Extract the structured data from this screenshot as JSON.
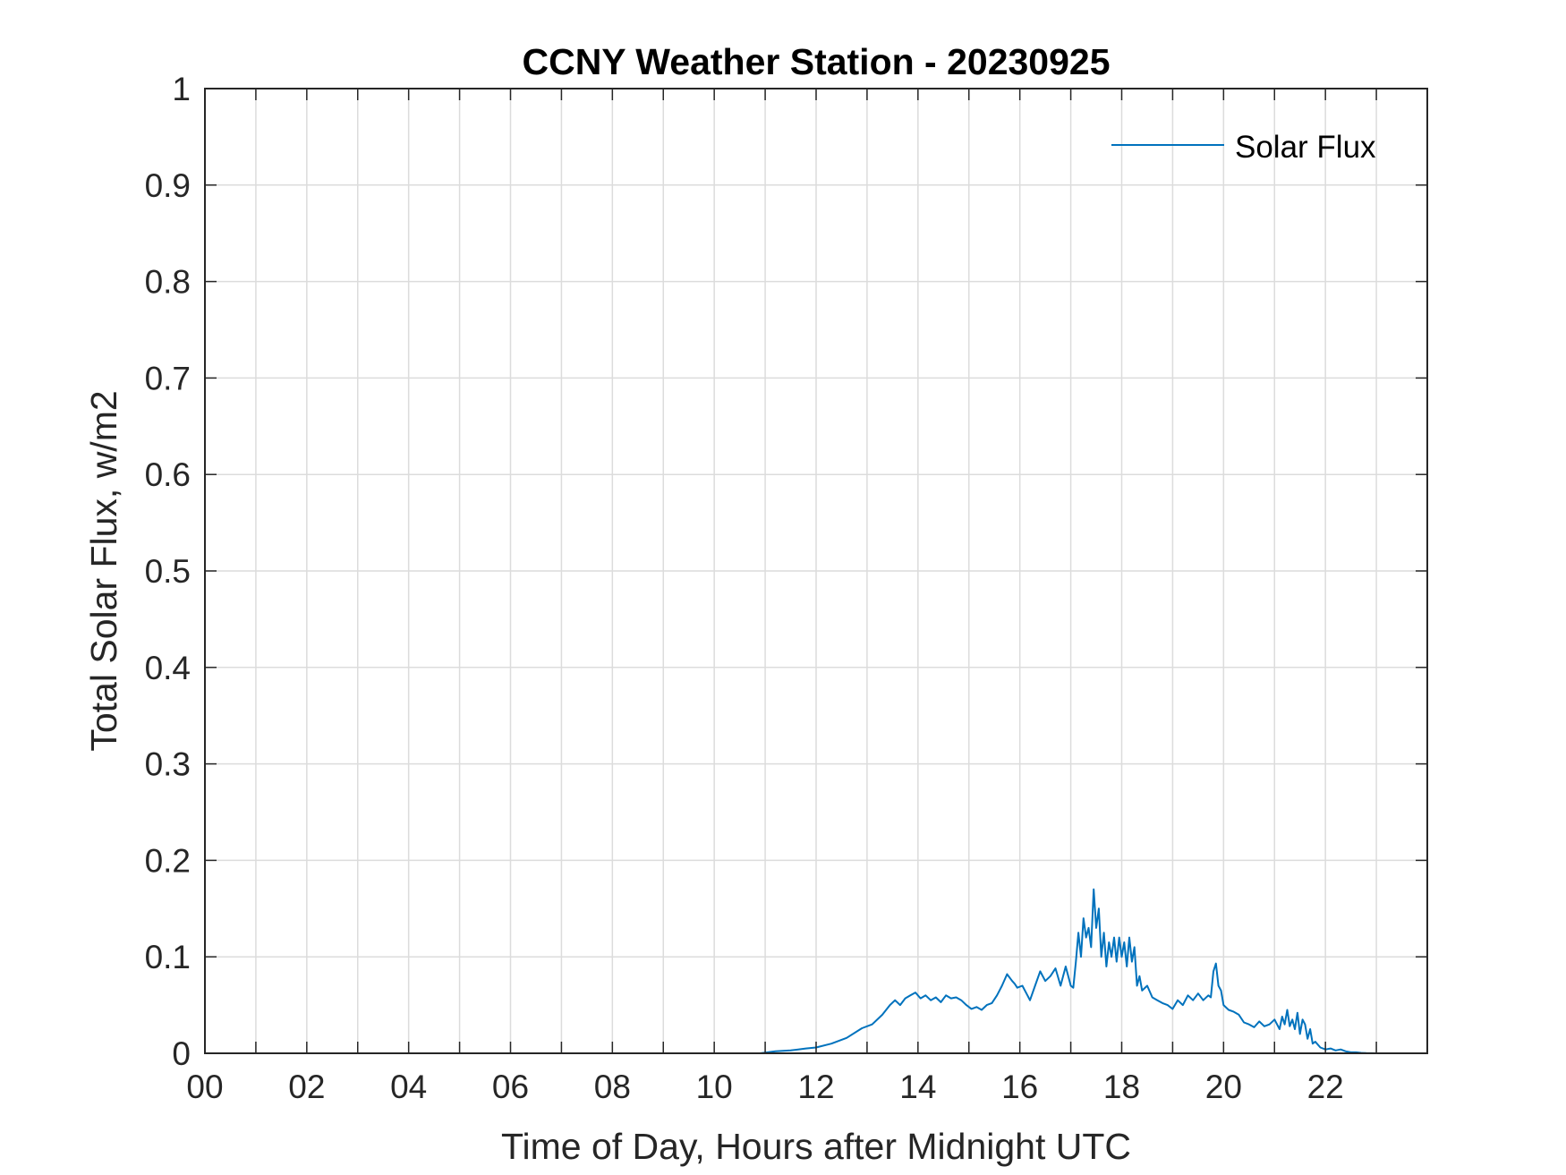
{
  "chart_data": {
    "type": "line",
    "title": "CCNY Weather Station - 20230925",
    "xlabel": "Time of Day, Hours after Midnight UTC",
    "ylabel": "Total Solar Flux, w/m2",
    "xlim": [
      0,
      24
    ],
    "ylim": [
      0,
      1
    ],
    "grid": true,
    "legend_position": "top-right",
    "x_ticks": [
      {
        "value": 0,
        "label": "00"
      },
      {
        "value": 2,
        "label": "02"
      },
      {
        "value": 4,
        "label": "04"
      },
      {
        "value": 6,
        "label": "06"
      },
      {
        "value": 8,
        "label": "08"
      },
      {
        "value": 10,
        "label": "10"
      },
      {
        "value": 12,
        "label": "12"
      },
      {
        "value": 14,
        "label": "14"
      },
      {
        "value": 16,
        "label": "16"
      },
      {
        "value": 18,
        "label": "18"
      },
      {
        "value": 20,
        "label": "20"
      },
      {
        "value": 22,
        "label": "22"
      }
    ],
    "x_minor_grid": [
      1,
      3,
      5,
      7,
      9,
      11,
      13,
      15,
      17,
      19,
      21,
      23
    ],
    "y_ticks": [
      {
        "value": 0,
        "label": "0"
      },
      {
        "value": 0.1,
        "label": "0.1"
      },
      {
        "value": 0.2,
        "label": "0.2"
      },
      {
        "value": 0.3,
        "label": "0.3"
      },
      {
        "value": 0.4,
        "label": "0.4"
      },
      {
        "value": 0.5,
        "label": "0.5"
      },
      {
        "value": 0.6,
        "label": "0.6"
      },
      {
        "value": 0.7,
        "label": "0.7"
      },
      {
        "value": 0.8,
        "label": "0.8"
      },
      {
        "value": 0.9,
        "label": "0.9"
      },
      {
        "value": 1,
        "label": "1"
      }
    ],
    "series": [
      {
        "name": "Solar Flux",
        "color": "#0072BD",
        "x": [
          0,
          10.9,
          11.2,
          11.5,
          11.8,
          12.0,
          12.3,
          12.6,
          12.9,
          13.1,
          13.3,
          13.45,
          13.55,
          13.65,
          13.75,
          13.85,
          13.95,
          14.05,
          14.15,
          14.25,
          14.35,
          14.45,
          14.55,
          14.65,
          14.75,
          14.85,
          14.95,
          15.05,
          15.15,
          15.25,
          15.35,
          15.45,
          15.55,
          15.6,
          15.65,
          15.75,
          15.85,
          15.9,
          15.95,
          16.05,
          16.15,
          16.2,
          16.3,
          16.4,
          16.5,
          16.6,
          16.7,
          16.8,
          16.9,
          17.0,
          17.05,
          17.1,
          17.15,
          17.2,
          17.25,
          17.3,
          17.35,
          17.4,
          17.45,
          17.5,
          17.55,
          17.6,
          17.65,
          17.7,
          17.75,
          17.8,
          17.85,
          17.9,
          17.95,
          18.0,
          18.05,
          18.1,
          18.15,
          18.2,
          18.25,
          18.3,
          18.35,
          18.4,
          18.5,
          18.6,
          18.7,
          18.8,
          18.9,
          19.0,
          19.1,
          19.2,
          19.3,
          19.4,
          19.5,
          19.6,
          19.7,
          19.75,
          19.8,
          19.85,
          19.9,
          19.95,
          20.0,
          20.1,
          20.2,
          20.3,
          20.4,
          20.5,
          20.6,
          20.7,
          20.8,
          20.9,
          21.0,
          21.1,
          21.15,
          21.2,
          21.25,
          21.3,
          21.35,
          21.4,
          21.45,
          21.5,
          21.55,
          21.6,
          21.65,
          21.7,
          21.75,
          21.8,
          21.9,
          22.0,
          22.1,
          22.2,
          22.3,
          22.4,
          22.5,
          22.6,
          22.7,
          22.8,
          23.0,
          24.0
        ],
        "y": [
          0,
          0,
          0.002,
          0.003,
          0.005,
          0.006,
          0.01,
          0.016,
          0.026,
          0.03,
          0.04,
          0.05,
          0.055,
          0.05,
          0.057,
          0.06,
          0.063,
          0.057,
          0.06,
          0.055,
          0.058,
          0.053,
          0.06,
          0.057,
          0.058,
          0.055,
          0.05,
          0.046,
          0.048,
          0.045,
          0.05,
          0.052,
          0.06,
          0.065,
          0.07,
          0.082,
          0.075,
          0.072,
          0.068,
          0.07,
          0.06,
          0.055,
          0.07,
          0.085,
          0.075,
          0.08,
          0.088,
          0.07,
          0.09,
          0.07,
          0.068,
          0.095,
          0.125,
          0.1,
          0.14,
          0.12,
          0.13,
          0.11,
          0.17,
          0.13,
          0.15,
          0.1,
          0.125,
          0.09,
          0.115,
          0.1,
          0.12,
          0.095,
          0.12,
          0.1,
          0.115,
          0.09,
          0.12,
          0.095,
          0.11,
          0.07,
          0.08,
          0.065,
          0.07,
          0.058,
          0.055,
          0.052,
          0.05,
          0.046,
          0.055,
          0.05,
          0.06,
          0.055,
          0.062,
          0.055,
          0.06,
          0.058,
          0.085,
          0.093,
          0.07,
          0.065,
          0.05,
          0.045,
          0.043,
          0.04,
          0.032,
          0.03,
          0.027,
          0.033,
          0.028,
          0.03,
          0.035,
          0.025,
          0.038,
          0.03,
          0.045,
          0.028,
          0.035,
          0.025,
          0.042,
          0.02,
          0.035,
          0.03,
          0.015,
          0.025,
          0.01,
          0.012,
          0.006,
          0.004,
          0.005,
          0.003,
          0.004,
          0.002,
          0.001,
          0.001,
          0.0005,
          0.0002,
          0,
          0
        ]
      }
    ]
  }
}
